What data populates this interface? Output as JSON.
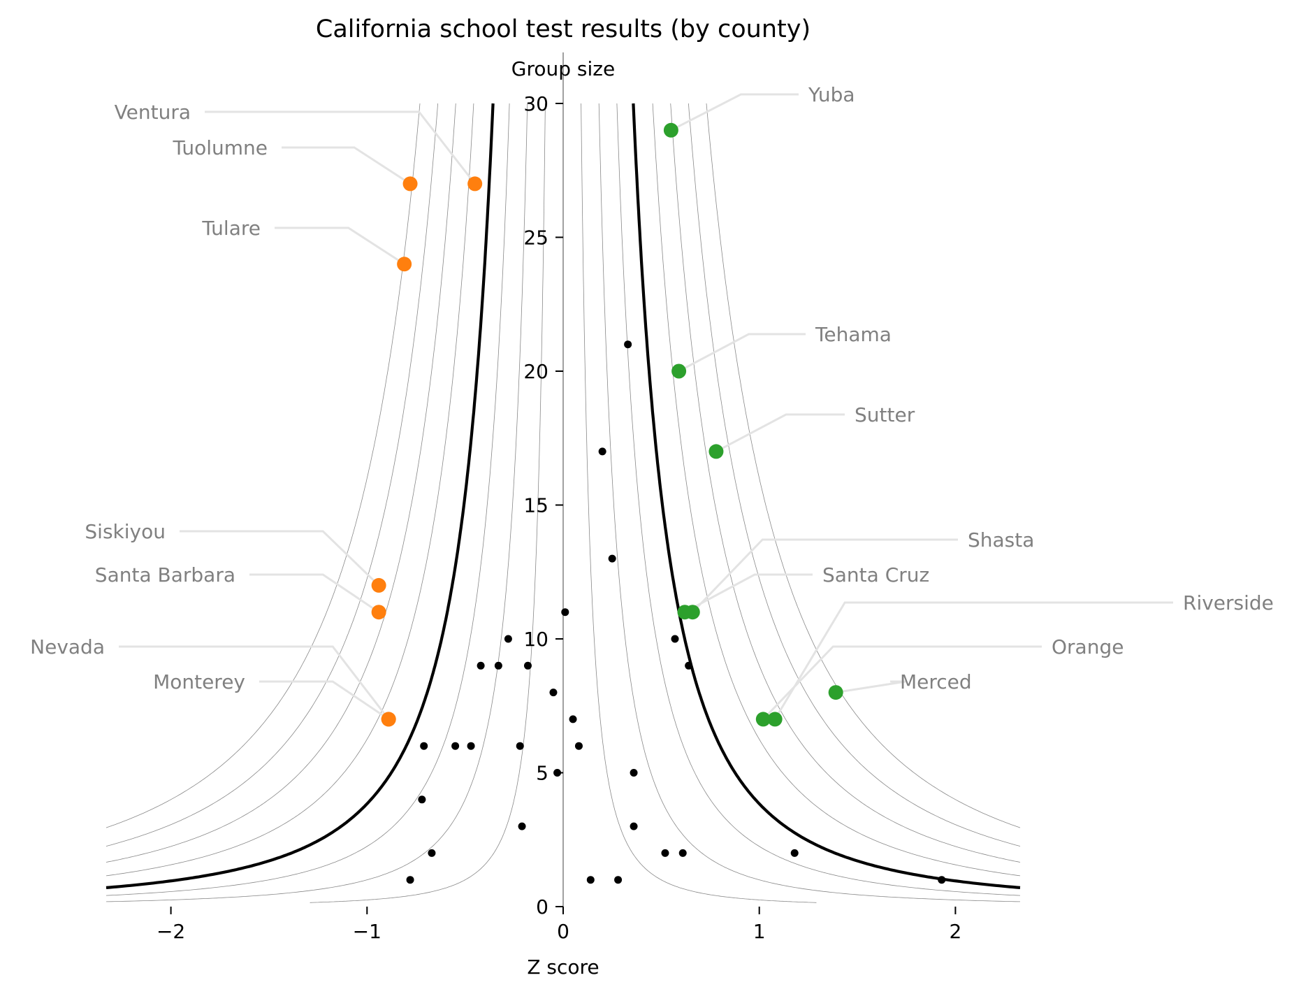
{
  "chart_data": {
    "type": "scatter",
    "title": "California school test results (by county)",
    "xlabel": "Z score",
    "ylabel": "Group size",
    "xlim": [
      -2.33,
      2.33
    ],
    "ylim": [
      0,
      30
    ],
    "xticks": [
      -2,
      -1,
      0,
      1,
      2
    ],
    "xtick_labels": [
      "−2",
      "−1",
      "0",
      "1",
      "2"
    ],
    "yticks": [
      0,
      5,
      10,
      15,
      20,
      25,
      30
    ],
    "ytick_labels": [
      "0",
      "5",
      "10",
      "15",
      "20",
      "25",
      "30"
    ],
    "grid": false,
    "legend": false,
    "colors": {
      "low": "#ff7f0e",
      "high": "#2ca02c",
      "other": "#000000",
      "label": "#808080",
      "critical_curve": "#000000",
      "thin_curve": "#888888"
    },
    "funnel": {
      "critical_z": 1.96,
      "thin_z_levels": [
        0.5,
        1.0,
        1.5,
        2.5,
        3.0,
        3.5,
        4.0
      ]
    },
    "series": [
      {
        "group": "low",
        "points": [
          {
            "label": "Ventura",
            "x": -0.45,
            "y": 27
          },
          {
            "label": "Tuolumne",
            "x": -0.78,
            "y": 27
          },
          {
            "label": "Tulare",
            "x": -0.81,
            "y": 24
          },
          {
            "label": "Siskiyou",
            "x": -0.94,
            "y": 12
          },
          {
            "label": "Santa Barbara",
            "x": -0.94,
            "y": 11
          },
          {
            "label": "Nevada",
            "x": -0.89,
            "y": 7
          },
          {
            "label": "Monterey",
            "x": -0.89,
            "y": 7
          }
        ]
      },
      {
        "group": "high",
        "points": [
          {
            "label": "Yuba",
            "x": 0.55,
            "y": 29
          },
          {
            "label": "Tehama",
            "x": 0.59,
            "y": 20
          },
          {
            "label": "Sutter",
            "x": 0.78,
            "y": 17
          },
          {
            "label": "Shasta",
            "x": 0.66,
            "y": 11
          },
          {
            "label": "Santa Cruz",
            "x": 0.62,
            "y": 11
          },
          {
            "label": "Riverside",
            "x": 1.08,
            "y": 7
          },
          {
            "label": "Orange",
            "x": 1.02,
            "y": 7
          },
          {
            "label": "Merced",
            "x": 1.39,
            "y": 8
          }
        ]
      },
      {
        "group": "other",
        "points": [
          {
            "x": 0.33,
            "y": 21
          },
          {
            "x": 0.2,
            "y": 17
          },
          {
            "x": 0.25,
            "y": 13
          },
          {
            "x": 0.01,
            "y": 11
          },
          {
            "x": -0.28,
            "y": 10
          },
          {
            "x": 0.57,
            "y": 10
          },
          {
            "x": -0.42,
            "y": 9
          },
          {
            "x": -0.33,
            "y": 9
          },
          {
            "x": -0.18,
            "y": 9
          },
          {
            "x": 0.64,
            "y": 9
          },
          {
            "x": -0.05,
            "y": 8
          },
          {
            "x": 0.05,
            "y": 7
          },
          {
            "x": -0.71,
            "y": 6
          },
          {
            "x": -0.55,
            "y": 6
          },
          {
            "x": -0.47,
            "y": 6
          },
          {
            "x": -0.22,
            "y": 6
          },
          {
            "x": 0.08,
            "y": 6
          },
          {
            "x": -0.03,
            "y": 5
          },
          {
            "x": 0.36,
            "y": 5
          },
          {
            "x": -0.72,
            "y": 4
          },
          {
            "x": -0.21,
            "y": 3
          },
          {
            "x": 0.36,
            "y": 3
          },
          {
            "x": -0.67,
            "y": 2
          },
          {
            "x": 0.52,
            "y": 2
          },
          {
            "x": 0.61,
            "y": 2
          },
          {
            "x": 1.18,
            "y": 2
          },
          {
            "x": -0.78,
            "y": 1
          },
          {
            "x": 0.14,
            "y": 1
          },
          {
            "x": 0.28,
            "y": 1
          },
          {
            "x": 1.93,
            "y": 1
          }
        ]
      }
    ]
  }
}
